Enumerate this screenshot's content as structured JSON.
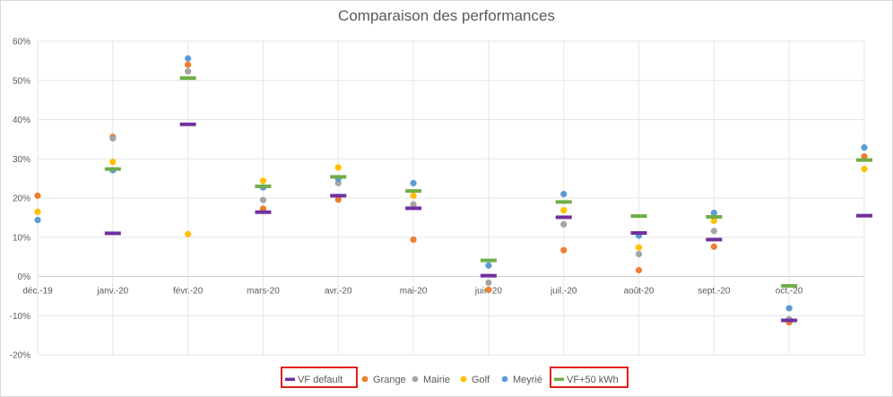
{
  "chart_data": {
    "type": "scatter",
    "title": "Comparaison des performances",
    "xlabel": "",
    "ylabel": "",
    "categories": [
      "déc.-19",
      "janv.-20",
      "févr.-20",
      "mars-20",
      "avr.-20",
      "mai-20",
      "juin-20",
      "juil.-20",
      "août-20",
      "sept.-20",
      "oct.-20",
      ""
    ],
    "y_ticks": [
      "60%",
      "50%",
      "40%",
      "30%",
      "20%",
      "10%",
      "0%",
      "-10%",
      "-20%"
    ],
    "ylim": [
      -20,
      60
    ],
    "grid": true,
    "legend_position": "bottom",
    "series": [
      {
        "name": "VF default",
        "marker": "dash",
        "color": "#7030A0",
        "values": [
          null,
          11,
          38.8,
          16.4,
          20.6,
          17.4,
          0.2,
          15.1,
          11.1,
          9.4,
          -11.2,
          15.5
        ]
      },
      {
        "name": "Grange",
        "marker": "dot",
        "color": "#ED7D31",
        "values": [
          20.6,
          35.6,
          54.0,
          17.3,
          19.6,
          9.4,
          -3.4,
          6.7,
          1.6,
          7.6,
          -11.7,
          30.6
        ]
      },
      {
        "name": "Mairie",
        "marker": "dot",
        "color": "#A5A5A5",
        "values": [
          null,
          35.2,
          52.3,
          19.5,
          23.8,
          18.4,
          -1.6,
          13.3,
          5.7,
          11.6,
          -10.9,
          null
        ]
      },
      {
        "name": "Golf",
        "marker": "dot",
        "color": "#FFC000",
        "values": [
          16.5,
          29.2,
          10.8,
          24.4,
          27.8,
          20.6,
          null,
          16.9,
          7.4,
          14.2,
          null,
          27.4
        ]
      },
      {
        "name": "Meyrié",
        "marker": "dot",
        "color": "#5B9BD5",
        "values": [
          14.4,
          27.1,
          55.6,
          22.7,
          24.9,
          23.8,
          2.8,
          21.0,
          10.4,
          16.2,
          -8.1,
          32.9
        ]
      },
      {
        "name": "VF+50 kWh",
        "marker": "dash",
        "color": "#70AD47",
        "values": [
          null,
          27.4,
          50.6,
          23.0,
          25.4,
          21.8,
          4.1,
          19.0,
          15.4,
          15.2,
          -2.4,
          29.7
        ]
      }
    ]
  }
}
